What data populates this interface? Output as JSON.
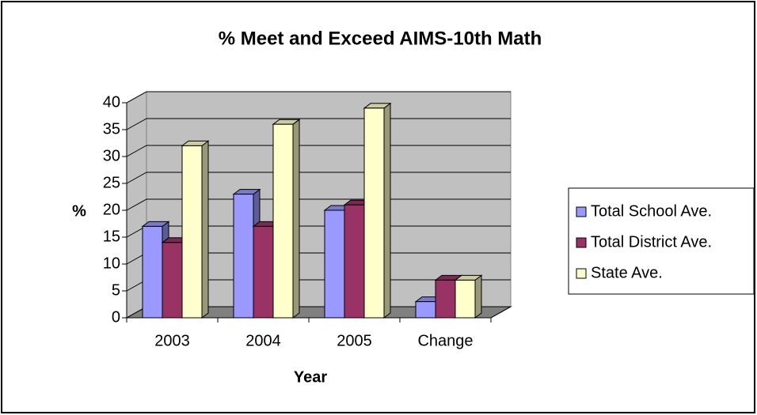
{
  "chart_data": {
    "type": "bar3d",
    "title": "% Meet and Exceed AIMS-10th Math",
    "x_label": "Year",
    "y_label": "%",
    "categories": [
      "2003",
      "2004",
      "2005",
      "Change"
    ],
    "series": [
      {
        "name": "Total School Ave.",
        "color": "#9999ff",
        "values": [
          17,
          23,
          20,
          3
        ]
      },
      {
        "name": "Total District Ave.",
        "color": "#993366",
        "values": [
          14,
          17,
          21,
          7
        ]
      },
      {
        "name": "State Ave.",
        "color": "#ffffcc",
        "values": [
          32,
          36,
          39,
          7
        ]
      }
    ],
    "ylim": [
      0,
      40
    ],
    "yticks": [
      0,
      5,
      10,
      15,
      20,
      25,
      30,
      35,
      40
    ],
    "grid": true,
    "legend": "right"
  }
}
